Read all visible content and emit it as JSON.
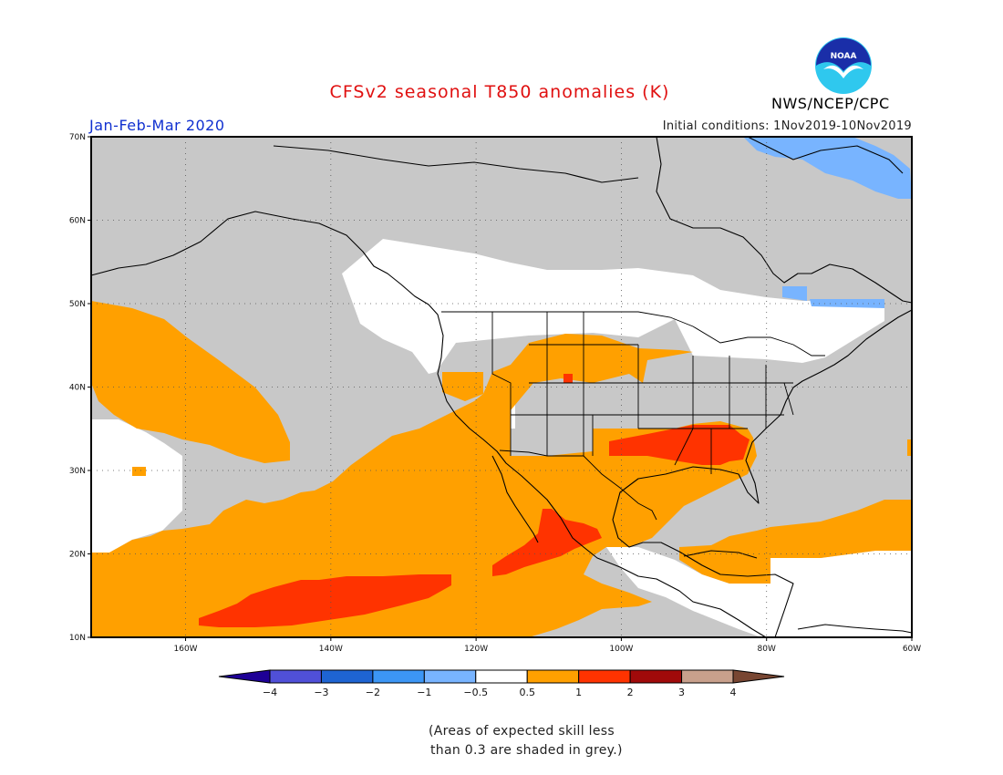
{
  "title": "CFSv2 seasonal T850 anomalies (K)",
  "period": "Jan-Feb-Mar 2020",
  "initial_conditions": "Initial conditions: 1Nov2019-10Nov2019",
  "agency": "NWS/NCEP/CPC",
  "logo": {
    "text": "NOAA",
    "icon": "noaa-logo-icon",
    "colors": {
      "sky": "#2fc8ee",
      "navy": "#1a2ea8",
      "gull": "#ffffff"
    }
  },
  "footnote": {
    "line1": "(Areas of expected skill less",
    "line2": "than 0.3 are shaded in grey.)"
  },
  "map": {
    "lon_range": [
      -173,
      -60
    ],
    "lat_range": [
      10,
      70
    ],
    "lat_labels": [
      "70N",
      "60N",
      "50N",
      "40N",
      "30N",
      "20N",
      "10N"
    ],
    "lat_values": [
      70,
      60,
      50,
      40,
      30,
      20,
      10
    ],
    "lon_labels": [
      "160W",
      "140W",
      "120W",
      "100W",
      "80W",
      "60W"
    ],
    "lon_values": [
      -160,
      -140,
      -120,
      -100,
      -80,
      -60
    ],
    "shading_colors": {
      "grey": "#c8c8c8",
      "white": "#ffffff",
      "orange": "#ffa000",
      "red": "#ff3300",
      "light_blue": "#78b4ff"
    }
  },
  "colorbar": {
    "colors": [
      "#1e0096",
      "#5050d8",
      "#1e64d2",
      "#3c96f5",
      "#78b4ff",
      "#ffffff",
      "#ffa000",
      "#ff3300",
      "#a00a0a",
      "#c8a08c",
      "#784632"
    ],
    "labels": [
      "−4",
      "−3",
      "−2",
      "−1",
      "−0.5",
      "0.5",
      "1",
      "2",
      "3",
      "4"
    ]
  }
}
